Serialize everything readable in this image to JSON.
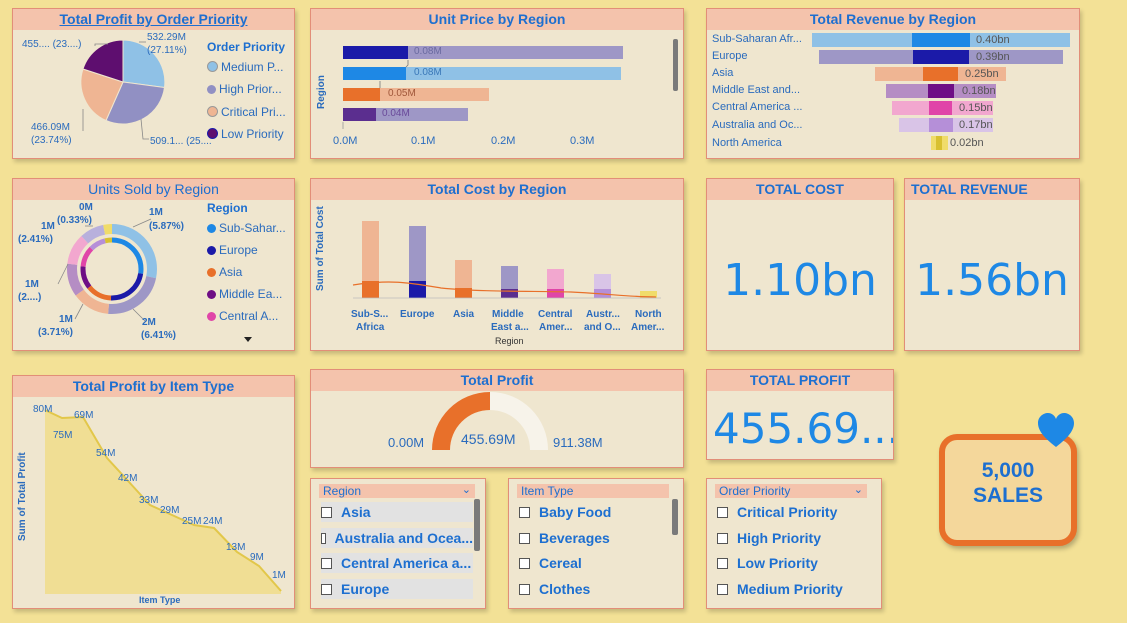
{
  "colors": {
    "accent": "#1e88e5",
    "title_bg": "#f4c3ac",
    "panel_bg": "#efe6cf",
    "page_bg": "#f3e196",
    "orange": "#e8702a"
  },
  "profit_by_priority": {
    "title": "Total Profit by Order Priority",
    "legend_title": "Order Priority",
    "legend": [
      "Medium P...",
      "High Prior...",
      "Critical Pri...",
      "Low Priority"
    ],
    "labels": {
      "top_left": "455.... (23....)",
      "top_right_1": "532.29M",
      "top_right_2": "(27.11%)",
      "bottom_left_1": "466.09M",
      "bottom_left_2": "(23.74%)",
      "bottom_right": "509.1... (25...."
    }
  },
  "unit_price": {
    "title": "Unit Price by Region",
    "ylabel": "Region",
    "bar_labels": [
      "0.08M",
      "0.08M",
      "0.05M",
      "0.04M"
    ],
    "ticks": [
      "0.0M",
      "0.1M",
      "0.2M",
      "0.3M"
    ]
  },
  "revenue_region": {
    "title": "Total Revenue by Region",
    "rows": [
      {
        "name": "Sub-Saharan Afr...",
        "label": "0.40bn"
      },
      {
        "name": "Europe",
        "label": "0.39bn"
      },
      {
        "name": "Asia",
        "label": "0.25bn"
      },
      {
        "name": "Middle East and...",
        "label": "0.18bn"
      },
      {
        "name": "Central America ...",
        "label": "0.15bn"
      },
      {
        "name": "Australia and Oc...",
        "label": "0.17bn"
      },
      {
        "name": "North America",
        "label": "0.02bn"
      }
    ]
  },
  "units_sold": {
    "title": "Units Sold by Region",
    "legend_title": "Region",
    "legend": [
      "Sub-Sahar...",
      "Europe",
      "Asia",
      "Middle Ea...",
      "Central A..."
    ],
    "labels": {
      "zero": "0M",
      "zero_pct": "(0.33%)",
      "onem_tl": "1M",
      "onem_tl_pct": "(2.41%)",
      "onem_tr": "1M",
      "onem_tr_pct": "(5.87%)",
      "onem_l": "1M",
      "onem_l_pct": "(2....)",
      "onem_bl": "1M",
      "onem_bl_pct": "(3.71%)",
      "twom": "2M",
      "twom_pct": "(6.41%)"
    }
  },
  "total_cost_region": {
    "title": "Total Cost by Region",
    "ylabel": "Sum of Total Cost",
    "xlabel": "Region",
    "categories": [
      [
        "Sub-S...",
        "Africa"
      ],
      [
        "Europe",
        ""
      ],
      [
        "Asia",
        ""
      ],
      [
        "Middle",
        "East a..."
      ],
      [
        "Central",
        "Amer..."
      ],
      [
        "Austr...",
        "and O..."
      ],
      [
        "North",
        "Amer..."
      ]
    ]
  },
  "kpi": {
    "total_cost_title": "TOTAL COST",
    "total_cost_value": "1.10bn",
    "total_revenue_title": "TOTAL REVENUE",
    "total_revenue_value": "1.56bn",
    "total_profit_title": "TOTAL PROFIT",
    "total_profit_value": "455.69..."
  },
  "profit_item": {
    "title": "Total Profit by Item Type",
    "ylabel": "Sum of Total Profit",
    "xlabel": "Item Type",
    "labels": [
      "80M",
      "75M",
      "69M",
      "54M",
      "42M",
      "33M",
      "29M",
      "25M",
      "24M",
      "13M",
      "9M",
      "1M"
    ]
  },
  "gauge": {
    "title": "Total Profit",
    "min": "0.00M",
    "value": "455.69M",
    "max": "911.38M",
    "fraction": 0.5
  },
  "slicers": {
    "region": {
      "title": "Region",
      "items": [
        "Asia",
        "Australia and Ocea...",
        "Central America a...",
        "Europe"
      ]
    },
    "item_type": {
      "title": "Item Type",
      "items": [
        "Baby Food",
        "Beverages",
        "Cereal",
        "Clothes"
      ]
    },
    "order_priority": {
      "title": "Order Priority",
      "items": [
        "Critical Priority",
        "High Priority",
        "Low Priority",
        "Medium Priority"
      ]
    }
  },
  "sales_badge": {
    "line1": "5,000",
    "line2": "SALES"
  }
}
